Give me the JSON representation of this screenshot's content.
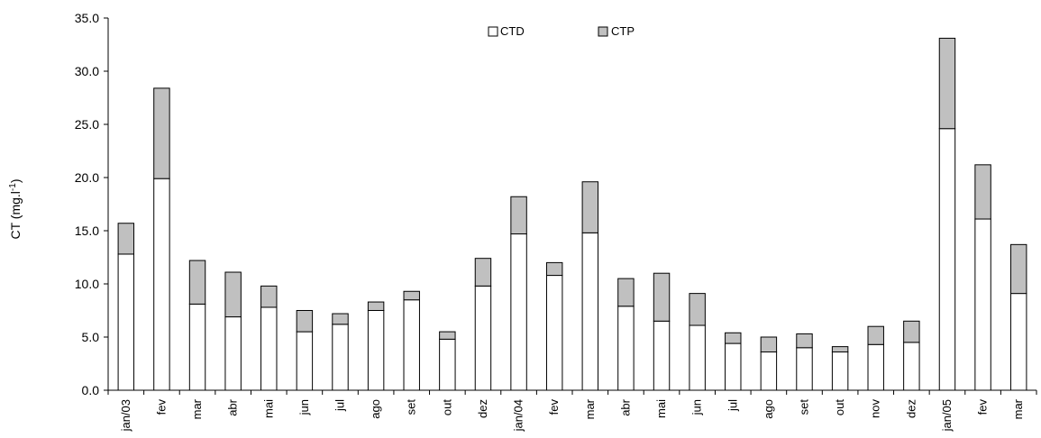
{
  "chart_data": {
    "type": "bar",
    "stacked": true,
    "categories": [
      "jan/03",
      "fev",
      "mar",
      "abr",
      "mai",
      "jun",
      "jul",
      "ago",
      "set",
      "out",
      "dez",
      "jan/04",
      "fev",
      "mar",
      "abr",
      "mai",
      "jun",
      "jul",
      "ago",
      "set",
      "out",
      "nov",
      "dez",
      "jan/05",
      "fev",
      "mar"
    ],
    "series": [
      {
        "name": "CTD",
        "color": "#ffffff",
        "values": [
          12.8,
          19.9,
          8.1,
          6.9,
          7.8,
          5.5,
          6.2,
          7.5,
          8.5,
          4.8,
          9.8,
          14.7,
          10.8,
          14.8,
          7.9,
          6.5,
          6.1,
          4.4,
          3.6,
          4.0,
          3.6,
          4.3,
          4.5,
          24.6,
          16.1,
          9.1
        ]
      },
      {
        "name": "CTP",
        "color": "#c0c0c0",
        "values": [
          2.9,
          8.5,
          4.1,
          4.2,
          2.0,
          2.0,
          1.0,
          0.8,
          0.8,
          0.7,
          2.6,
          3.5,
          1.2,
          4.8,
          2.6,
          4.5,
          3.0,
          1.0,
          1.4,
          1.3,
          0.5,
          1.7,
          2.0,
          8.5,
          5.1,
          4.6
        ]
      }
    ],
    "ylabel": "CT (mg.l",
    "ylabel_sup": "-1",
    "ylabel_close": ")",
    "ylim": [
      0,
      35
    ],
    "yticks": [
      "0.0",
      "5.0",
      "10.0",
      "15.0",
      "20.0",
      "25.0",
      "30.0",
      "35.0"
    ],
    "grid": false,
    "legend_position": "top-center"
  }
}
